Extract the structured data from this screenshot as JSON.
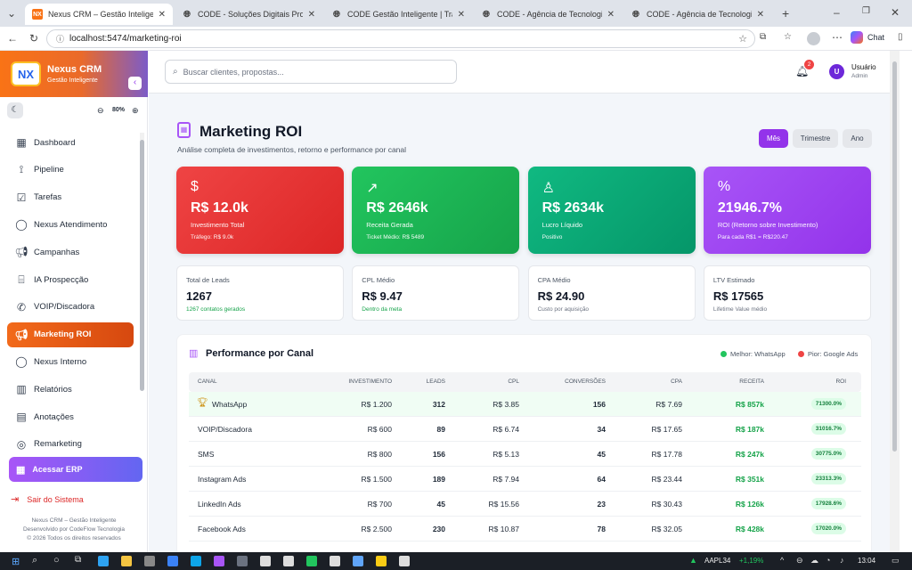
{
  "browser": {
    "tabs": [
      {
        "title": "Nexus CRM – Gestão Inteligente",
        "favicon": "NX",
        "color": "#f97316",
        "active": true
      },
      {
        "title": "CODE - Soluções Digitais Profissio",
        "favicon": "globe"
      },
      {
        "title": "CODE Gestão Inteligente | Transfo",
        "favicon": "globe"
      },
      {
        "title": "CODE - Agência de Tecnologia Em",
        "favicon": "globe"
      },
      {
        "title": "CODE - Agência de Tecnologia Em",
        "favicon": "globe"
      }
    ],
    "url": "localhost:5474/marketing-roi",
    "chat_label": "Chat"
  },
  "sidebar": {
    "brand_name": "Nexus CRM",
    "brand_sub": "Gestão Inteligente",
    "logo_text": "NX",
    "zoom": "80%",
    "items": [
      {
        "label": "Dashboard",
        "icon": "grid-icon"
      },
      {
        "label": "Pipeline",
        "icon": "pipeline-icon"
      },
      {
        "label": "Tarefas",
        "icon": "checkbox-icon"
      },
      {
        "label": "Nexus Atendimento",
        "icon": "chat-icon"
      },
      {
        "label": "Campanhas",
        "icon": "megaphone-icon"
      },
      {
        "label": "IA Prospecção",
        "icon": "bot-icon"
      },
      {
        "label": "VOIP/Discadora",
        "icon": "phone-icon"
      },
      {
        "label": "Marketing ROI",
        "icon": "megaphone-icon",
        "active": true
      },
      {
        "label": "Nexus Interno",
        "icon": "chat-icon"
      },
      {
        "label": "Relatórios",
        "icon": "bar-chart-icon"
      },
      {
        "label": "Anotações",
        "icon": "note-icon"
      },
      {
        "label": "Remarketing",
        "icon": "target-icon"
      }
    ],
    "erp_label": "Acessar ERP",
    "logout_label": "Sair do Sistema",
    "footer": [
      "Nexus CRM – Gestão Inteligente",
      "Desenvolvido por CodeFlow Tecnologia",
      "© 2026 Todos os direitos reservados"
    ]
  },
  "topbar": {
    "search_placeholder": "Buscar clientes, propostas...",
    "notif_count": "2",
    "user_initial": "U",
    "user_name": "Usuário",
    "user_role": "Admin"
  },
  "page": {
    "title": "Marketing ROI",
    "subtitle": "Análise completa de investimentos, retorno e performance por canal",
    "periods": [
      "Mês",
      "Trimestre",
      "Ano"
    ],
    "active_period": "Mês"
  },
  "kpis": [
    {
      "value": "R$ 12.0k",
      "label": "Investimento Total",
      "sub": "Tráfego: R$ 9.0k",
      "icon": "dollar-icon",
      "color_from": "#ef4444",
      "color_to": "#dc2626"
    },
    {
      "value": "R$ 2646k",
      "label": "Receita Gerada",
      "sub": "Ticket Médio: R$ 5489",
      "icon": "trend-up-icon",
      "color_from": "#22c55e",
      "color_to": "#16a34a"
    },
    {
      "value": "R$ 2634k",
      "label": "Lucro Líquido",
      "sub": "Positivo",
      "icon": "award-icon",
      "color_from": "#10b981",
      "color_to": "#059669"
    },
    {
      "value": "21946.7%",
      "label": "ROI (Retorno sobre Investimento)",
      "sub": "Para cada R$1 = R$220.47",
      "icon": "percent-icon",
      "color_from": "#a855f7",
      "color_to": "#9333ea"
    }
  ],
  "stats": [
    {
      "label": "Total de Leads",
      "value": "1267",
      "sub": "1267 contatos gerados"
    },
    {
      "label": "CPL Médio",
      "value": "R$ 9.47",
      "sub": "Dentro da meta"
    },
    {
      "label": "CPA Médio",
      "value": "R$ 24.90",
      "sub": "Custo por aquisição"
    },
    {
      "label": "LTV Estimado",
      "value": "R$ 17565",
      "sub": "Lifetime Value médio"
    }
  ],
  "channels": {
    "title": "Performance por Canal",
    "best_label": "Melhor: WhatsApp",
    "worst_label": "Pior: Google Ads",
    "columns": [
      "CANAL",
      "INVESTIMENTO",
      "LEADS",
      "CPL",
      "CONVERSÕES",
      "CPA",
      "RECEITA",
      "ROI"
    ],
    "rows": [
      {
        "canal": "WhatsApp",
        "investimento": "R$ 1.200",
        "leads": "312",
        "cpl": "R$ 3.85",
        "conversoes": "156",
        "cpa": "R$ 7.69",
        "receita": "R$ 857k",
        "roi": "71300.0%",
        "best": true
      },
      {
        "canal": "VOIP/Discadora",
        "investimento": "R$ 600",
        "leads": "89",
        "cpl": "R$ 6.74",
        "conversoes": "34",
        "cpa": "R$ 17.65",
        "receita": "R$ 187k",
        "roi": "31016.7%"
      },
      {
        "canal": "SMS",
        "investimento": "R$ 800",
        "leads": "156",
        "cpl": "R$ 5.13",
        "conversoes": "45",
        "cpa": "R$ 17.78",
        "receita": "R$ 247k",
        "roi": "30775.0%"
      },
      {
        "canal": "Instagram Ads",
        "investimento": "R$ 1.500",
        "leads": "189",
        "cpl": "R$ 7.94",
        "conversoes": "64",
        "cpa": "R$ 23.44",
        "receita": "R$ 351k",
        "roi": "23313.3%"
      },
      {
        "canal": "LinkedIn Ads",
        "investimento": "R$ 700",
        "leads": "45",
        "cpl": "R$ 15.56",
        "conversoes": "23",
        "cpa": "R$ 30.43",
        "receita": "R$ 126k",
        "roi": "17928.6%"
      },
      {
        "canal": "Facebook Ads",
        "investimento": "R$ 2.500",
        "leads": "230",
        "cpl": "R$ 10.87",
        "conversoes": "78",
        "cpa": "R$ 32.05",
        "receita": "R$ 428k",
        "roi": "17020.0%"
      }
    ]
  },
  "taskbar": {
    "ticker": "AAPL34",
    "change": "+1,19%",
    "time": "13:04"
  }
}
